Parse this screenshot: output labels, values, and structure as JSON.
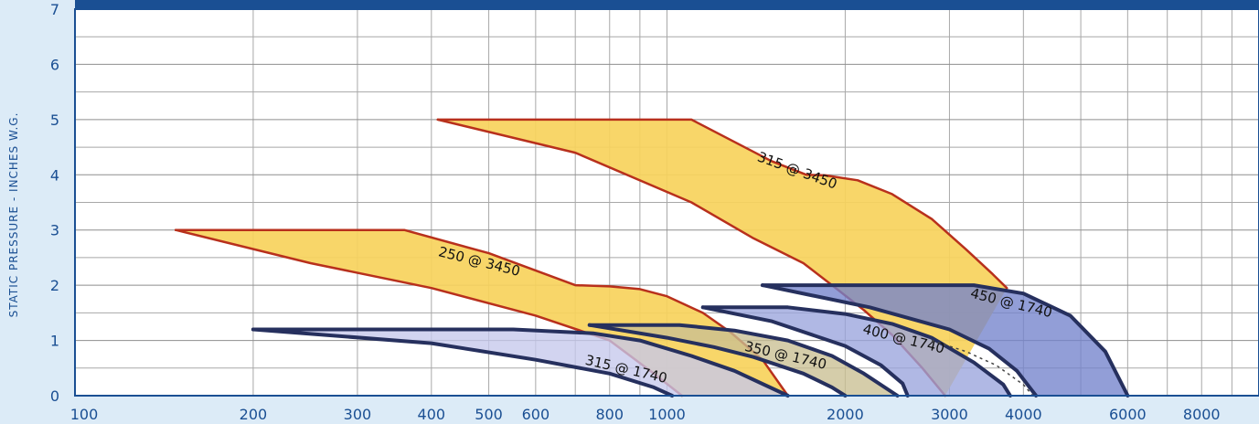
{
  "chart_data": {
    "type": "area",
    "xscale": "log",
    "xlim": [
      100,
      10000
    ],
    "ylim": [
      0,
      7
    ],
    "grid": true,
    "ylabel": "STATIC PRESSURE - INCHES W.G.",
    "x_ticks": [
      100,
      200,
      300,
      400,
      500,
      600,
      800,
      1000,
      2000,
      3000,
      4000,
      6000,
      8000
    ],
    "x_tick_labels": [
      "100",
      "200",
      "300",
      "400",
      "500",
      "600",
      "800",
      "1000",
      "2000",
      "3000",
      "4000",
      "6000",
      "8000"
    ],
    "y_ticks": [
      0,
      1,
      2,
      3,
      4,
      5,
      6,
      7
    ],
    "y_tick_labels": [
      "0",
      "1",
      "2",
      "3",
      "4",
      "5",
      "6",
      "7"
    ],
    "colors": {
      "background": "#dcebf7",
      "plot_bg": "#ffffff",
      "frame": "#1a4f93",
      "grid": "#a8a8a8",
      "yellow_fill": "#f7d25c",
      "yellow_edge": "#b8301c",
      "blue_edge": "#26305e",
      "lavender_fill": "#c5c8ec",
      "periwinkle_fill": "#9aa4dd",
      "medium_blue_fill": "#7383cc",
      "gray_fill": "#8b9299",
      "tan_fill": "#c9bf92"
    },
    "series": [
      {
        "name": "250 @ 3450",
        "fill": "yellow",
        "label_at": [
          480,
          2.35
        ],
        "label_rotation": 14,
        "upper": [
          [
            148,
            3.0
          ],
          [
            360,
            3.0
          ],
          [
            500,
            2.58
          ],
          [
            700,
            2.0
          ],
          [
            800,
            1.98
          ],
          [
            900,
            1.93
          ],
          [
            1000,
            1.8
          ],
          [
            1150,
            1.5
          ],
          [
            1280,
            1.15
          ],
          [
            1450,
            0.65
          ],
          [
            1600,
            0.0
          ]
        ],
        "lower": [
          [
            148,
            3.0
          ],
          [
            250,
            2.4
          ],
          [
            400,
            1.95
          ],
          [
            600,
            1.45
          ],
          [
            800,
            1.0
          ],
          [
            950,
            0.4
          ],
          [
            1060,
            0.0
          ]
        ]
      },
      {
        "name": "315 @ 3450",
        "fill": "yellow",
        "label_at": [
          1650,
          4.0
        ],
        "label_rotation": 20,
        "upper": [
          [
            410,
            5.0
          ],
          [
            1100,
            5.0
          ],
          [
            1500,
            4.25
          ],
          [
            1720,
            4.0
          ],
          [
            1850,
            3.99
          ],
          [
            2100,
            3.9
          ],
          [
            2400,
            3.65
          ],
          [
            2800,
            3.2
          ],
          [
            3200,
            2.65
          ],
          [
            3550,
            2.2
          ],
          [
            3750,
            1.95
          ]
        ],
        "lower": [
          [
            410,
            5.0
          ],
          [
            700,
            4.4
          ],
          [
            1100,
            3.5
          ],
          [
            1400,
            2.85
          ],
          [
            1700,
            2.4
          ],
          [
            1900,
            2.0
          ],
          [
            2150,
            1.55
          ],
          [
            2400,
            1.1
          ],
          [
            2700,
            0.5
          ],
          [
            2950,
            0.0
          ]
        ]
      },
      {
        "name": "315 @ 1740",
        "fill": "lavender",
        "label_at": [
          850,
          0.4
        ],
        "label_rotation": 13,
        "upper": [
          [
            200,
            1.2
          ],
          [
            550,
            1.2
          ],
          [
            750,
            1.13
          ],
          [
            900,
            1.0
          ],
          [
            1100,
            0.72
          ],
          [
            1300,
            0.45
          ],
          [
            1600,
            0.0
          ]
        ],
        "lower": [
          [
            200,
            1.2
          ],
          [
            400,
            0.95
          ],
          [
            600,
            0.65
          ],
          [
            800,
            0.4
          ],
          [
            950,
            0.15
          ],
          [
            1020,
            0.0
          ]
        ]
      },
      {
        "name": "350 @ 1740",
        "fill": "tan",
        "label_at": [
          1580,
          0.65
        ],
        "label_rotation": 13,
        "upper": [
          [
            740,
            1.28
          ],
          [
            1050,
            1.28
          ],
          [
            1300,
            1.18
          ],
          [
            1600,
            1.0
          ],
          [
            1900,
            0.72
          ],
          [
            2150,
            0.4
          ],
          [
            2450,
            0.0
          ]
        ],
        "lower": [
          [
            740,
            1.28
          ],
          [
            1000,
            1.05
          ],
          [
            1200,
            0.88
          ],
          [
            1400,
            0.7
          ],
          [
            1700,
            0.4
          ],
          [
            1900,
            0.15
          ],
          [
            2000,
            0.0
          ]
        ]
      },
      {
        "name": "400 @ 1740",
        "fill": "periwinkle",
        "label_at": [
          2500,
          0.95
        ],
        "label_rotation": 14,
        "upper": [
          [
            1150,
            1.6
          ],
          [
            1600,
            1.6
          ],
          [
            2000,
            1.48
          ],
          [
            2400,
            1.3
          ],
          [
            2800,
            1.05
          ],
          [
            3300,
            0.6
          ],
          [
            3700,
            0.2
          ],
          [
            3800,
            0.0
          ]
        ],
        "lower": [
          [
            1150,
            1.6
          ],
          [
            1500,
            1.35
          ],
          [
            2000,
            0.9
          ],
          [
            2300,
            0.55
          ],
          [
            2500,
            0.22
          ],
          [
            2550,
            0.0
          ]
        ]
      },
      {
        "name": "450 @ 1740",
        "fill": "medium_blue",
        "label_at": [
          3800,
          1.6
        ],
        "label_rotation": 14,
        "upper": [
          [
            1450,
            2.0
          ],
          [
            3300,
            2.0
          ],
          [
            4000,
            1.85
          ],
          [
            4800,
            1.45
          ],
          [
            5500,
            0.8
          ],
          [
            6000,
            0.0
          ]
        ],
        "lower": [
          [
            1450,
            2.0
          ],
          [
            2200,
            1.6
          ],
          [
            3000,
            1.2
          ],
          [
            3500,
            0.85
          ],
          [
            3900,
            0.45
          ],
          [
            4200,
            0.0
          ]
        ]
      }
    ],
    "dotted_line": [
      [
        2800,
        1.0
      ],
      [
        3200,
        0.8
      ],
      [
        3600,
        0.55
      ],
      [
        4000,
        0.2
      ],
      [
        4150,
        0.0
      ]
    ]
  }
}
